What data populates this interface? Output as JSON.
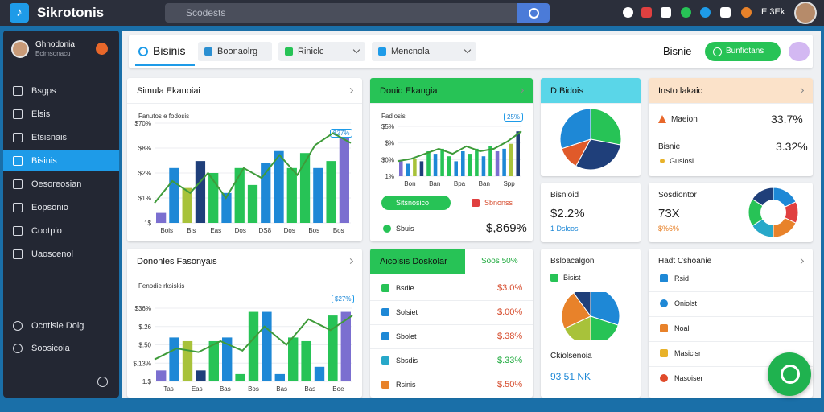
{
  "app": {
    "title": "Sikrotonis",
    "logo_glyph": "♪"
  },
  "search": {
    "placeholder": "Scodests"
  },
  "topbar_brand": "E 3Ek",
  "sidebar": {
    "user_name": "Ghnodonia",
    "user_sub": "Ecimsonacu",
    "items": [
      {
        "label": "Bsgps",
        "active": false
      },
      {
        "label": "Elsis",
        "active": false
      },
      {
        "label": "Etsisnais",
        "active": false
      },
      {
        "label": "Bisinis",
        "active": true
      },
      {
        "label": "Oesoreosian",
        "active": false
      },
      {
        "label": "Eopsonio",
        "active": false
      },
      {
        "label": "Cootpio",
        "active": false
      },
      {
        "label": "Uaoscenol",
        "active": false
      }
    ],
    "bottom_items": [
      {
        "label": "Ocntlsie Dolg"
      },
      {
        "label": "Soosicoia"
      }
    ]
  },
  "header": {
    "tab_main": "Bisinis",
    "tabs": [
      "Boonaolrg",
      "Riniclc",
      "Mencnola"
    ],
    "title": "Bisnie",
    "btn_label": "Bunfiotans"
  },
  "card1": {
    "title": "Simula Ekanoiai",
    "sub": "Fanutos e fodosis",
    "badge": "$27%",
    "yticks": [
      "$70%",
      "$8%",
      "$2%",
      "$1%",
      "1$"
    ],
    "xticks": [
      "Bois",
      "Bis",
      "Eas",
      "Dos",
      "DS8",
      "Dos",
      "Bos",
      "Bos"
    ]
  },
  "card2": {
    "title": "Douid Ekangia",
    "sub": "Fadiosis",
    "badge": "25%",
    "yticks": [
      "$5%",
      "$%",
      "$0%",
      "1%"
    ],
    "xticks": [
      "Bon",
      "Ban",
      "Bpa",
      "Ban",
      "Spp"
    ],
    "pill1": "Sitsnosico",
    "pill2": "Sbnonss",
    "row_label": "Sbuis",
    "row_value": "$,869%"
  },
  "card3": {
    "title": "D Bidois"
  },
  "card4": {
    "title": "Insto lakaic",
    "rows": [
      {
        "label": "Maeion",
        "value": "33.7%"
      },
      {
        "label": "Bisnie",
        "value": "3.32%"
      }
    ],
    "sub": "Gusiosl"
  },
  "card5": {
    "title": "Bisnioid",
    "value": "$2.2%",
    "sub": "1 Dslcos"
  },
  "card6": {
    "title": "Sosdiontor",
    "value": "73X",
    "sub": "$%6%"
  },
  "card7": {
    "title": "Dononles Fasonyais",
    "sub": "Fenodie rksiskis",
    "badge": "$27%",
    "yticks": [
      "$36%",
      "$.26",
      "$.50",
      "$.13%",
      "1.$"
    ],
    "xticks": [
      "Tas",
      "Eas",
      "Bas",
      "Bos",
      "Bas",
      "Bas",
      "Boe"
    ]
  },
  "card8": {
    "title": "Aicolsis Doskolar",
    "badge": "Soos 50%",
    "rows": [
      {
        "label": "Bsdie",
        "value": "$3.0%"
      },
      {
        "label": "Solsiet",
        "value": "$.00%"
      },
      {
        "label": "Sbolet",
        "value": "$.38%"
      },
      {
        "label": "Sbsdis",
        "value": "$.33%"
      },
      {
        "label": "Rsinis",
        "value": "$.50%"
      }
    ]
  },
  "card9": {
    "title": "Bsloacalgon",
    "sub": "Bisist",
    "title2": "Ckiolsenoia",
    "value": "93 51 NK"
  },
  "card10": {
    "title": "Hadt Cshoanie",
    "rows": [
      {
        "label": "Rsid"
      },
      {
        "label": "Oniolst"
      },
      {
        "label": "Noal"
      },
      {
        "label": "Masicisr"
      },
      {
        "label": "Nasoiser"
      }
    ]
  },
  "colors": {
    "blue": "#1e88d6",
    "green": "#27c356",
    "olive": "#a8c23a",
    "orange": "#e8822a",
    "purple": "#7b6fd0",
    "navy": "#1f3f7a",
    "line": "#3f9b3a"
  }
}
